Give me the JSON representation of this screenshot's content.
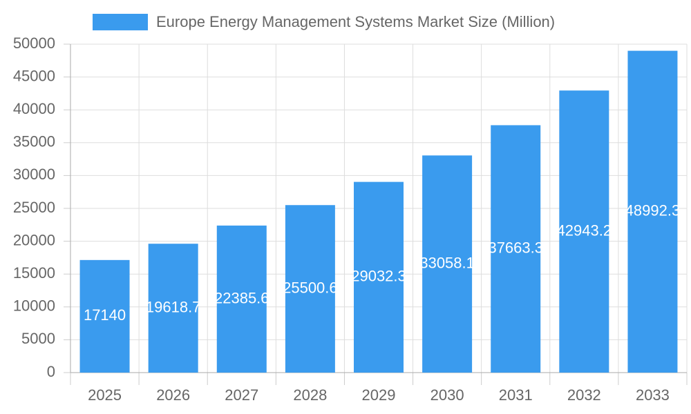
{
  "chart_data": {
    "type": "bar",
    "categories": [
      "2025",
      "2026",
      "2027",
      "2028",
      "2029",
      "2030",
      "2031",
      "2032",
      "2033"
    ],
    "series": [
      {
        "name": "Europe Energy Management Systems Market Size (Million)",
        "color": "#3a9bee",
        "values": [
          17140,
          19618.7,
          22385.6,
          25500.6,
          29032.3,
          33058.1,
          37663.3,
          42943.2,
          48992.3
        ]
      }
    ],
    "ylim": [
      0,
      50000
    ],
    "yticks": [
      0,
      5000,
      10000,
      15000,
      20000,
      25000,
      30000,
      35000,
      40000,
      45000,
      50000
    ],
    "grid": true
  }
}
